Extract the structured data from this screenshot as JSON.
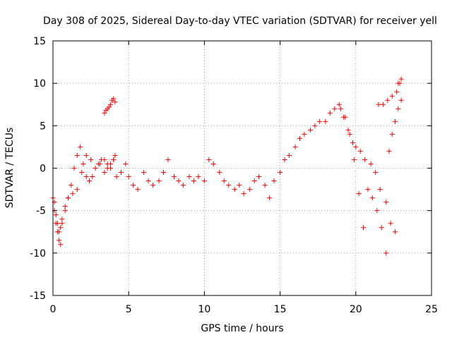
{
  "chart_data": {
    "type": "scatter",
    "title": "Day 308 of 2025, Sidereal Day-to-day VTEC variation (SDTVAR) for receiver yell",
    "xlabel": "GPS time / hours",
    "ylabel": "SDTVAR / TECUs",
    "xlim": [
      0,
      25
    ],
    "ylim": [
      -15,
      15
    ],
    "xticks": [
      0,
      5,
      10,
      15,
      20,
      25
    ],
    "yticks": [
      -15,
      -10,
      -5,
      0,
      5,
      10,
      15
    ],
    "xtick_labels": [
      "0",
      "5",
      "10",
      "15",
      "20",
      "25"
    ],
    "ytick_labels": [
      "-15",
      "-10",
      "-5",
      "0",
      "5",
      "10",
      "15"
    ],
    "grid": true,
    "marker": "+",
    "color": "#ff0000",
    "series": [
      {
        "name": "SDTVAR",
        "x": [
          0.0,
          0.1,
          0.2,
          0.3,
          0.4,
          0.5,
          0.6,
          0.8,
          1.0,
          1.2,
          1.4,
          1.6,
          1.8,
          2.0,
          2.2,
          2.4,
          2.6,
          2.8,
          3.0,
          3.2,
          3.4,
          3.6,
          3.8,
          4.0,
          4.2,
          4.5,
          4.8,
          5.0,
          5.3,
          5.6,
          6.0,
          6.3,
          6.6,
          7.0,
          7.3,
          7.6,
          8.0,
          8.3,
          8.6,
          9.0,
          9.3,
          9.6,
          10.0,
          10.3,
          10.6,
          11.0,
          11.3,
          11.6,
          12.0,
          12.3,
          12.6,
          13.0,
          13.3,
          13.6,
          14.0,
          14.3,
          14.6,
          15.0,
          15.3,
          15.6,
          16.0,
          16.3,
          16.6,
          17.0,
          17.3,
          17.6,
          18.0,
          18.3,
          18.6,
          18.9,
          19.2,
          19.5,
          19.8,
          20.0,
          20.3,
          20.6,
          21.0,
          21.3,
          21.6,
          22.0,
          22.3,
          22.6,
          22.8,
          23.0,
          0.1,
          0.2,
          0.3,
          0.4,
          0.5,
          0.6,
          0.8,
          1.0,
          1.3,
          1.6,
          1.9,
          2.2,
          2.5,
          2.8,
          3.1,
          3.4,
          3.6,
          3.8,
          4.0,
          4.1,
          19.0,
          19.3,
          19.6,
          19.9,
          20.2,
          20.5,
          20.8,
          21.1,
          21.4,
          21.7,
          22.0,
          21.5,
          21.8,
          22.1,
          22.4,
          22.7,
          22.9,
          3.4,
          3.5,
          3.6,
          3.7,
          3.8,
          3.9,
          4.0,
          4.1,
          22.2,
          22.4,
          22.6,
          22.8,
          23.0
        ],
        "y": [
          -3.5,
          -5.0,
          -6.5,
          -7.5,
          -8.5,
          -7.0,
          -6.0,
          -4.5,
          -3.5,
          -2.0,
          0.0,
          1.5,
          2.5,
          0.5,
          -1.0,
          -1.5,
          -1.0,
          0.0,
          0.5,
          1.0,
          -0.5,
          0.0,
          0.5,
          1.0,
          -1.0,
          -0.5,
          0.5,
          -1.0,
          -2.0,
          -2.5,
          -0.5,
          -1.5,
          -2.0,
          -1.5,
          -0.5,
          1.0,
          -1.0,
          -1.5,
          -2.0,
          -1.0,
          -1.5,
          -1.0,
          -1.5,
          1.0,
          0.5,
          -0.5,
          -1.5,
          -2.0,
          -2.5,
          -2.0,
          -3.0,
          -2.5,
          -1.5,
          -1.0,
          -2.0,
          -3.5,
          -1.5,
          -0.5,
          1.0,
          1.5,
          2.5,
          3.5,
          4.0,
          4.5,
          5.0,
          5.5,
          5.5,
          6.5,
          7.0,
          7.5,
          6.0,
          4.5,
          3.0,
          2.5,
          2.0,
          1.0,
          0.5,
          -0.5,
          -2.5,
          -4.0,
          -6.5,
          -7.5,
          10.0,
          10.5,
          -4.0,
          -5.5,
          -6.5,
          -7.5,
          -9.0,
          -6.5,
          -5.0,
          -3.5,
          -3.0,
          -2.5,
          -0.5,
          1.5,
          1.0,
          0.0,
          0.5,
          1.0,
          0.5,
          0.0,
          1.0,
          1.5,
          7.0,
          6.0,
          4.0,
          1.0,
          -3.0,
          -7.0,
          -2.5,
          -3.5,
          -5.0,
          -7.0,
          -10.0,
          7.5,
          7.5,
          8.0,
          8.5,
          9.0,
          10.0,
          6.5,
          6.8,
          7.0,
          7.2,
          7.5,
          8.0,
          8.2,
          7.8,
          2.0,
          4.0,
          5.5,
          7.0,
          8.0
        ]
      }
    ]
  }
}
